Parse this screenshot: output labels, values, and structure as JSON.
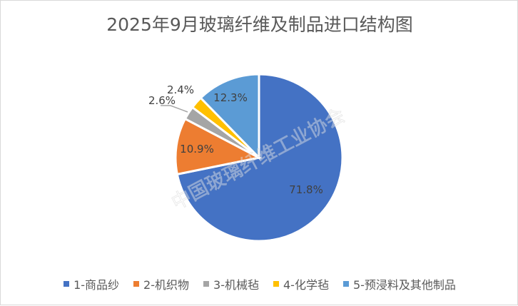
{
  "chart_data": {
    "type": "pie",
    "title": "2025年9月玻璃纤维及制品进口结构图",
    "start_angle": "12 o'clock, clockwise",
    "slices": [
      {
        "name": "1-商品纱",
        "value": 71.8,
        "label": "71.8%",
        "color": "#4472C4"
      },
      {
        "name": "2-机织物",
        "value": 10.9,
        "label": "10.9%",
        "color": "#ED7D31"
      },
      {
        "name": "3-机械毡",
        "value": 2.6,
        "label": "2.6%",
        "color": "#A5A5A5"
      },
      {
        "name": "4-化学毡",
        "value": 2.4,
        "label": "2.4%",
        "color": "#FFC000"
      },
      {
        "name": "5-预浸料及其他制品",
        "value": 12.3,
        "label": "12.3%",
        "color": "#5B9BD5"
      }
    ],
    "legend_position": "bottom"
  },
  "watermark": "中国玻璃纤维工业协会"
}
